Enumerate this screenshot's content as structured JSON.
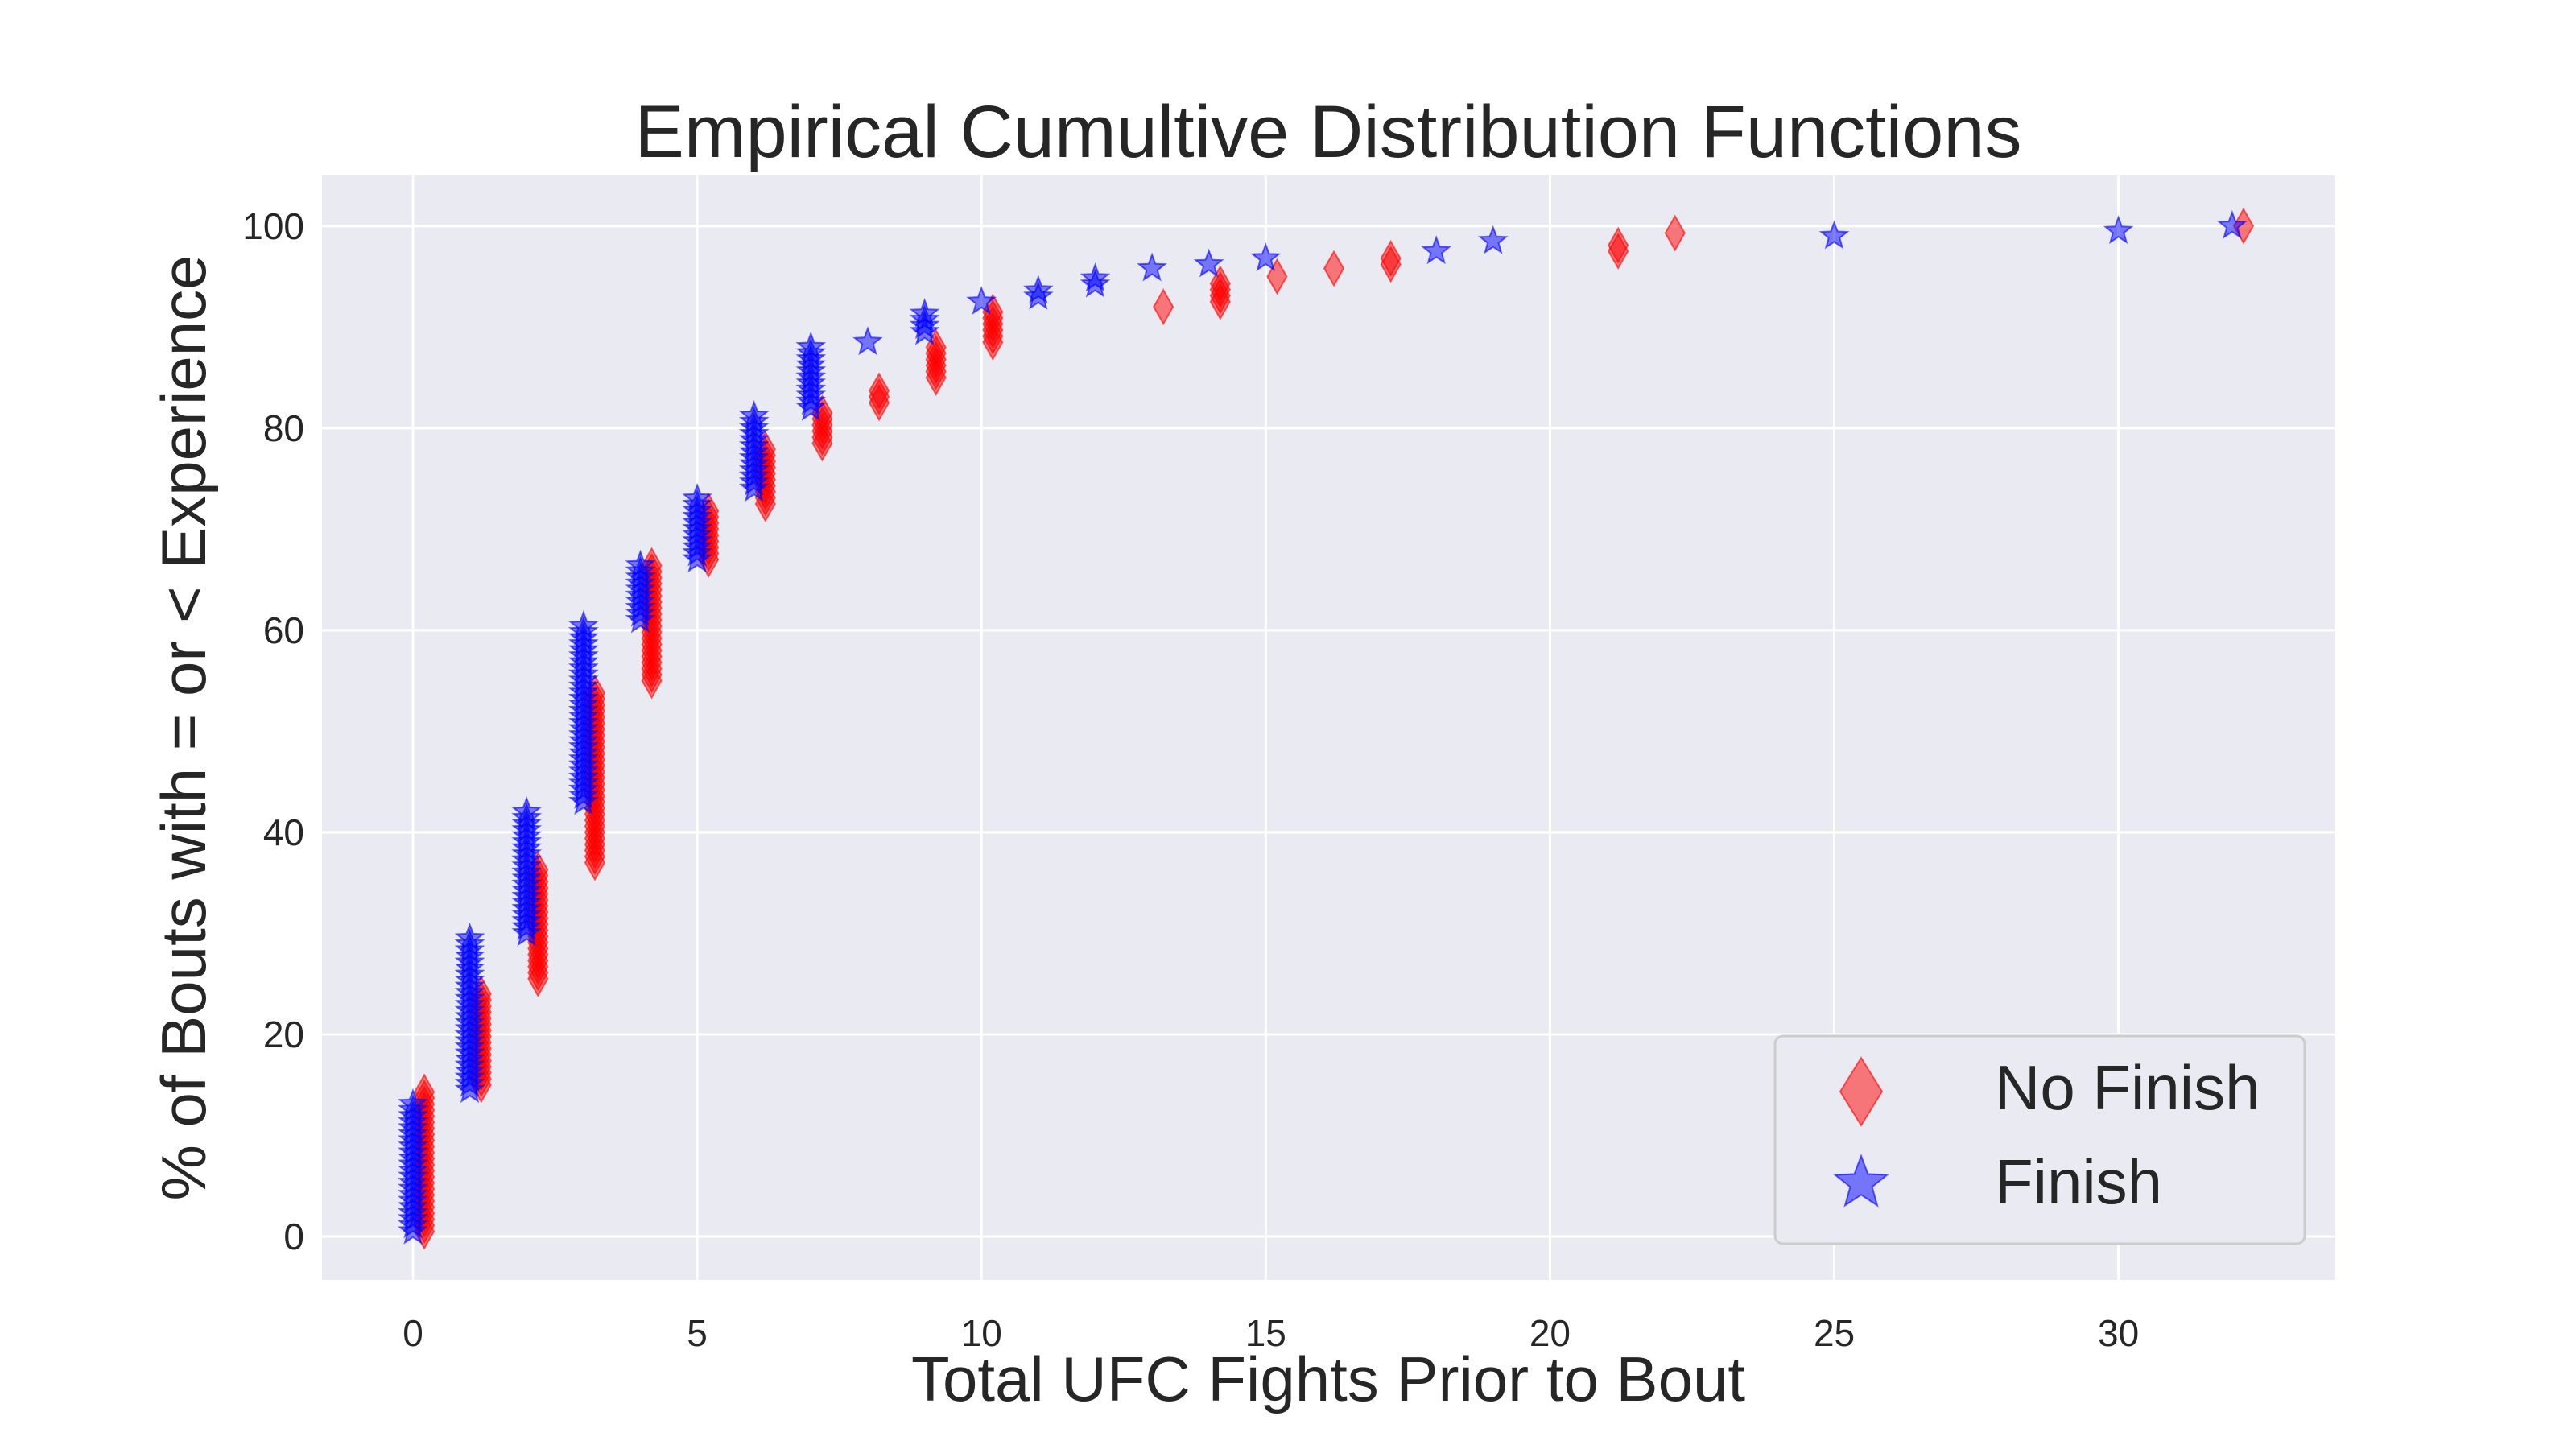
{
  "chart_data": {
    "type": "scatter",
    "title": "Empirical Cumultive Distribution Functions",
    "xlabel": "Total UFC Fights Prior to Bout",
    "ylabel": "% of Bouts with = or < Experience",
    "xlim": [
      -1.6,
      33.8
    ],
    "ylim": [
      -4.3,
      105
    ],
    "xticks": [
      "0",
      "5",
      "10",
      "15",
      "20",
      "25",
      "30"
    ],
    "yticks": [
      "0",
      "20",
      "40",
      "60",
      "80",
      "100"
    ],
    "grid": true,
    "legend_position": "lower-right",
    "series": [
      {
        "name": "No Finish",
        "marker": "diamond",
        "color": "#ff0000",
        "x": [
          0.2,
          0.2,
          1.2,
          1.2,
          2.2,
          2.2,
          3.2,
          3.2,
          4.2,
          4.2,
          5.2,
          5.2,
          6.2,
          6.2,
          7.2,
          7.2,
          8.2,
          8.2,
          9.2,
          9.2,
          10.2,
          10.2,
          13.2,
          14.2,
          14.2,
          15.2,
          16.2,
          17.2,
          17.2,
          21.2,
          21.2,
          22.2,
          32.2
        ],
        "y": [
          0.5,
          14.5,
          15,
          24.5,
          25.5,
          36.5,
          37,
          54,
          55,
          66.5,
          67,
          72,
          72.5,
          78,
          78.5,
          81.5,
          82.5,
          84,
          85,
          88,
          88.5,
          91.5,
          92,
          92.5,
          94.5,
          95,
          95.8,
          96.2,
          97,
          97.5,
          98.5,
          99.3,
          100
        ]
      },
      {
        "name": "Finish",
        "marker": "star",
        "color": "#0000ff",
        "x": [
          0,
          0,
          1,
          1,
          2,
          2,
          3,
          3,
          4,
          4,
          5,
          5,
          6,
          6,
          7,
          7,
          8,
          9,
          9,
          10,
          11,
          11,
          12,
          12,
          13,
          14,
          15,
          18,
          18,
          19,
          25,
          30,
          32
        ],
        "y": [
          0.5,
          13.5,
          14.5,
          29.5,
          30,
          42.5,
          43,
          60.5,
          61,
          66.5,
          67,
          73,
          74,
          81.5,
          82,
          88,
          88.5,
          89.5,
          91.5,
          92.5,
          93,
          93.8,
          94.2,
          95.2,
          95.8,
          96.2,
          96.8,
          97.5,
          98,
          98.5,
          99,
          99.5,
          100
        ]
      }
    ]
  }
}
